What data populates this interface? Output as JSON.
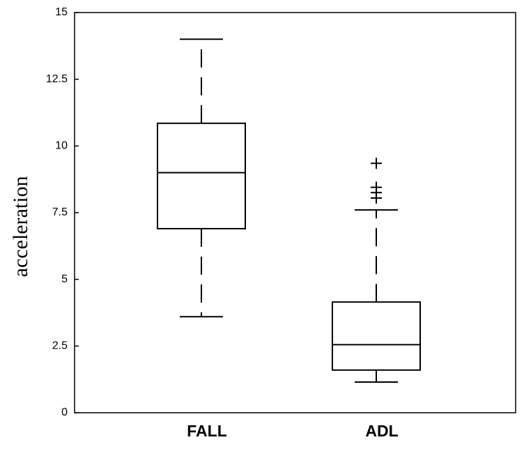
{
  "chart_data": {
    "type": "box",
    "y_label": "acceleration",
    "categories": [
      "FALL",
      "ADL"
    ],
    "boxes": [
      {
        "min": 3.6,
        "q1": 6.9,
        "median": 9.0,
        "q3": 10.85,
        "max": 14.0,
        "outliers": []
      },
      {
        "min": 1.15,
        "q1": 1.6,
        "median": 2.55,
        "q3": 4.15,
        "max": 7.6,
        "outliers": [
          9.35,
          8.45,
          8.25,
          8.05
        ]
      }
    ],
    "color": "#000000",
    "ylim": [
      0,
      15
    ],
    "yticks": [
      0,
      2.5,
      5,
      7.5,
      10,
      12.5,
      15
    ]
  }
}
